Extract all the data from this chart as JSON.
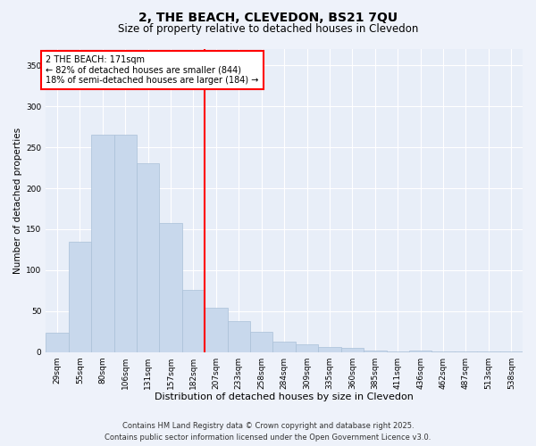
{
  "title": "2, THE BEACH, CLEVEDON, BS21 7QU",
  "subtitle": "Size of property relative to detached houses in Clevedon",
  "xlabel": "Distribution of detached houses by size in Clevedon",
  "ylabel": "Number of detached properties",
  "footer_line1": "Contains HM Land Registry data © Crown copyright and database right 2025.",
  "footer_line2": "Contains public sector information licensed under the Open Government Licence v3.0.",
  "categories": [
    "29sqm",
    "55sqm",
    "80sqm",
    "106sqm",
    "131sqm",
    "157sqm",
    "182sqm",
    "207sqm",
    "233sqm",
    "258sqm",
    "284sqm",
    "309sqm",
    "335sqm",
    "360sqm",
    "385sqm",
    "411sqm",
    "436sqm",
    "462sqm",
    "487sqm",
    "513sqm",
    "538sqm"
  ],
  "bar_values": [
    23,
    135,
    265,
    265,
    230,
    158,
    76,
    54,
    38,
    25,
    13,
    9,
    6,
    5,
    2,
    1,
    2,
    1,
    1,
    1,
    1
  ],
  "bar_color": "#c8d8ec",
  "bar_edge_color": "#aac0d8",
  "vline_pos": 6.5,
  "vline_color": "red",
  "annotation_text": "2 THE BEACH: 171sqm\n← 82% of detached houses are smaller (844)\n18% of semi-detached houses are larger (184) →",
  "ylim": [
    0,
    370
  ],
  "yticks": [
    0,
    50,
    100,
    150,
    200,
    250,
    300,
    350
  ],
  "background_color": "#eef2fa",
  "plot_background": "#e8eef8",
  "grid_color": "#ffffff",
  "title_fontsize": 10,
  "subtitle_fontsize": 8.5,
  "tick_fontsize": 6.5,
  "xlabel_fontsize": 8,
  "ylabel_fontsize": 7.5,
  "footer_fontsize": 6
}
